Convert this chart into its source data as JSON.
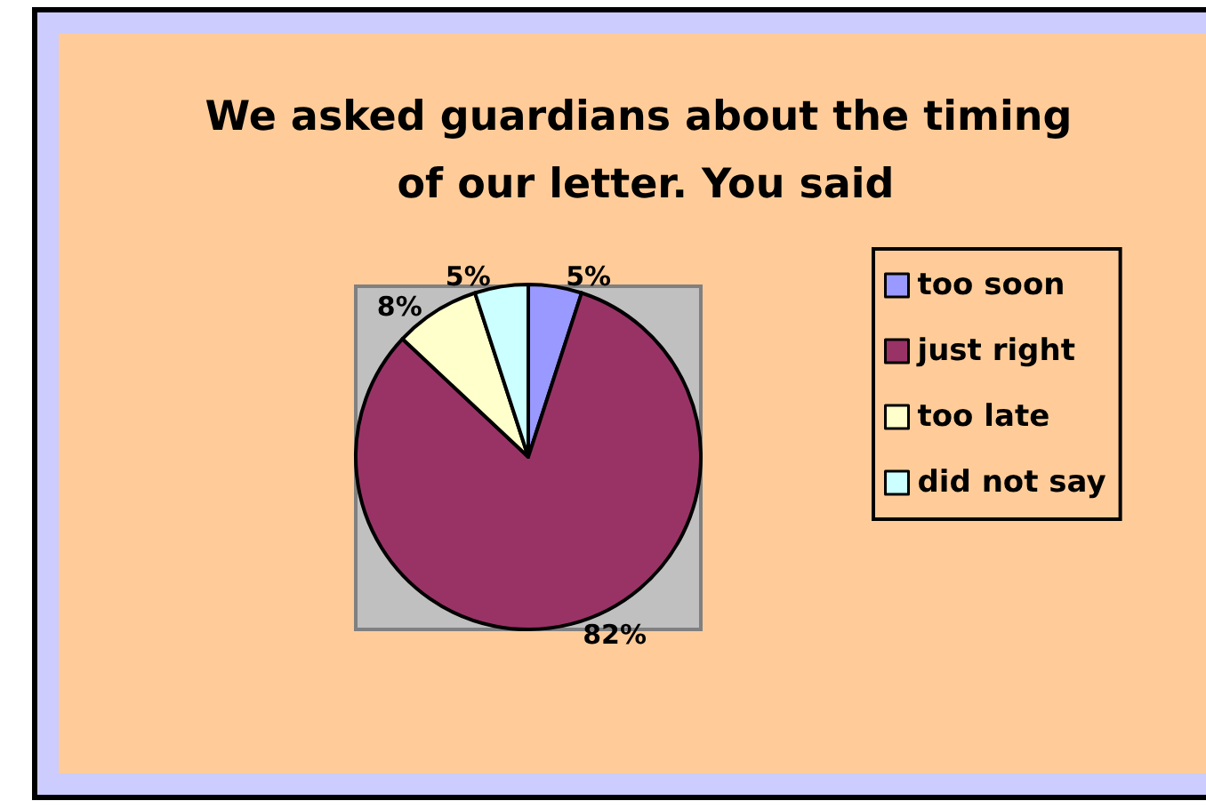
{
  "chart_data": {
    "type": "pie",
    "title": "We asked guardians about the timing of our letter. You said",
    "categories": [
      "too soon",
      "just right",
      "too late",
      "did not say"
    ],
    "values": [
      5,
      82,
      8,
      5
    ],
    "colors": [
      "#9999ff",
      "#993366",
      "#ffffcc",
      "#ccffff"
    ],
    "value_labels": [
      "5%",
      "82%",
      "8%",
      "5%"
    ],
    "legend": "right"
  }
}
